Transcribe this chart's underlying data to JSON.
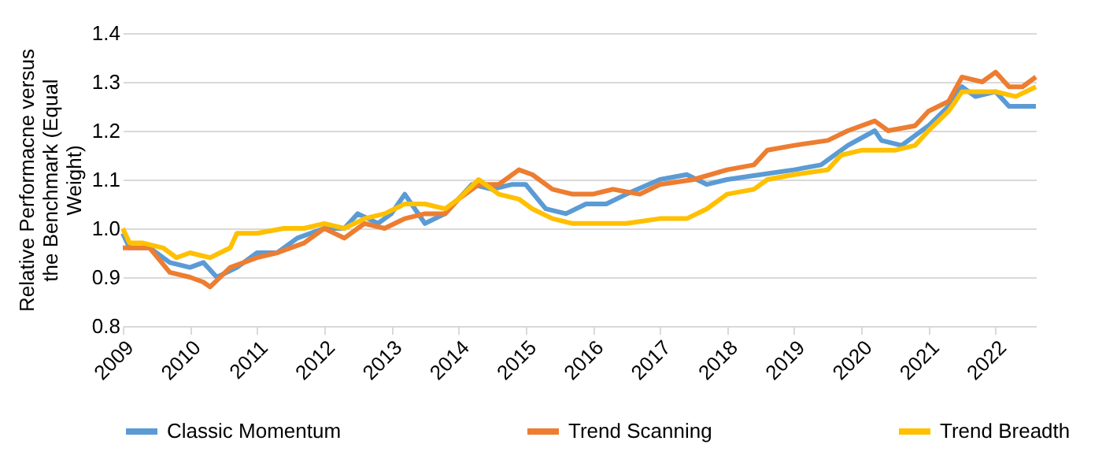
{
  "chart_data": {
    "type": "line",
    "ylabel": "Relative Performacne versus the Benchmark (Equal Weight)",
    "xlim": [
      2009,
      2022.6
    ],
    "xticks": [
      2009,
      2010,
      2011,
      2012,
      2013,
      2014,
      2015,
      2016,
      2017,
      2018,
      2019,
      2020,
      2021,
      2022
    ],
    "ylim": [
      0.8,
      1.4
    ],
    "yticks": [
      0.8,
      0.9,
      {
        "value": 1,
        "label": "1.0"
      },
      1.1,
      1.2,
      1.3,
      1.4
    ],
    "grid": "y",
    "legend": "bottom",
    "marker": "none",
    "line_style": "solid",
    "series": [
      {
        "name": "Classic Momentum",
        "color": "#5b9bd5",
        "x": [
          2009,
          2009.1,
          2009.4,
          2009.7,
          2010,
          2010.2,
          2010.4,
          2010.7,
          2011,
          2011.3,
          2011.6,
          2012,
          2012.3,
          2012.5,
          2012.8,
          2013,
          2013.2,
          2013.5,
          2013.8,
          2014,
          2014.2,
          2014.5,
          2014.8,
          2015,
          2015.3,
          2015.6,
          2015.9,
          2016.2,
          2016.5,
          2017,
          2017.4,
          2017.7,
          2018,
          2018.5,
          2019,
          2019.4,
          2019.8,
          2020.2,
          2020.3,
          2020.6,
          2021,
          2021.3,
          2021.5,
          2021.7,
          2022,
          2022.2,
          2022.6
        ],
        "values": [
          0.99,
          0.96,
          0.96,
          0.93,
          0.92,
          0.93,
          0.9,
          0.92,
          0.95,
          0.95,
          0.98,
          1.0,
          1.0,
          1.03,
          1.01,
          1.03,
          1.07,
          1.01,
          1.03,
          1.06,
          1.09,
          1.08,
          1.09,
          1.09,
          1.04,
          1.03,
          1.05,
          1.05,
          1.07,
          1.1,
          1.11,
          1.09,
          1.1,
          1.11,
          1.12,
          1.13,
          1.17,
          1.2,
          1.18,
          1.17,
          1.21,
          1.25,
          1.29,
          1.27,
          1.28,
          1.25,
          1.25
        ]
      },
      {
        "name": "Trend Scanning",
        "color": "#ed7d31",
        "x": [
          2009,
          2009.4,
          2009.7,
          2010,
          2010.2,
          2010.3,
          2010.6,
          2011,
          2011.3,
          2011.7,
          2012,
          2012.3,
          2012.6,
          2012.9,
          2013.2,
          2013.5,
          2013.8,
          2014,
          2014.3,
          2014.6,
          2014.9,
          2015.1,
          2015.4,
          2015.7,
          2016,
          2016.3,
          2016.7,
          2017,
          2017.5,
          2018,
          2018.4,
          2018.6,
          2019,
          2019.5,
          2019.8,
          2020.2,
          2020.4,
          2020.8,
          2021,
          2021.3,
          2021.5,
          2021.8,
          2022,
          2022.2,
          2022.4,
          2022.6
        ],
        "values": [
          0.96,
          0.96,
          0.91,
          0.9,
          0.89,
          0.88,
          0.92,
          0.94,
          0.95,
          0.97,
          1.0,
          0.98,
          1.01,
          1.0,
          1.02,
          1.03,
          1.03,
          1.06,
          1.09,
          1.09,
          1.12,
          1.11,
          1.08,
          1.07,
          1.07,
          1.08,
          1.07,
          1.09,
          1.1,
          1.12,
          1.13,
          1.16,
          1.17,
          1.18,
          1.2,
          1.22,
          1.2,
          1.21,
          1.24,
          1.26,
          1.31,
          1.3,
          1.32,
          1.29,
          1.29,
          1.31
        ]
      },
      {
        "name": "Trend Breadth",
        "color": "#ffc000",
        "x": [
          2009,
          2009.1,
          2009.3,
          2009.6,
          2009.8,
          2010,
          2010.3,
          2010.6,
          2010.7,
          2011,
          2011.4,
          2011.7,
          2012,
          2012.3,
          2012.6,
          2012.9,
          2013.2,
          2013.5,
          2013.8,
          2014,
          2014.3,
          2014.6,
          2014.9,
          2015.1,
          2015.4,
          2015.7,
          2016,
          2016.5,
          2017,
          2017.4,
          2017.7,
          2018,
          2018.4,
          2018.6,
          2019,
          2019.5,
          2019.7,
          2020,
          2020.5,
          2020.8,
          2021,
          2021.3,
          2021.5,
          2022,
          2022.3,
          2022.6
        ],
        "values": [
          1.0,
          0.97,
          0.97,
          0.96,
          0.94,
          0.95,
          0.94,
          0.96,
          0.99,
          0.99,
          1.0,
          1.0,
          1.01,
          1.0,
          1.02,
          1.03,
          1.05,
          1.05,
          1.04,
          1.06,
          1.1,
          1.07,
          1.06,
          1.04,
          1.02,
          1.01,
          1.01,
          1.01,
          1.02,
          1.02,
          1.04,
          1.07,
          1.08,
          1.1,
          1.11,
          1.12,
          1.15,
          1.16,
          1.16,
          1.17,
          1.2,
          1.24,
          1.28,
          1.28,
          1.27,
          1.29
        ]
      }
    ]
  }
}
